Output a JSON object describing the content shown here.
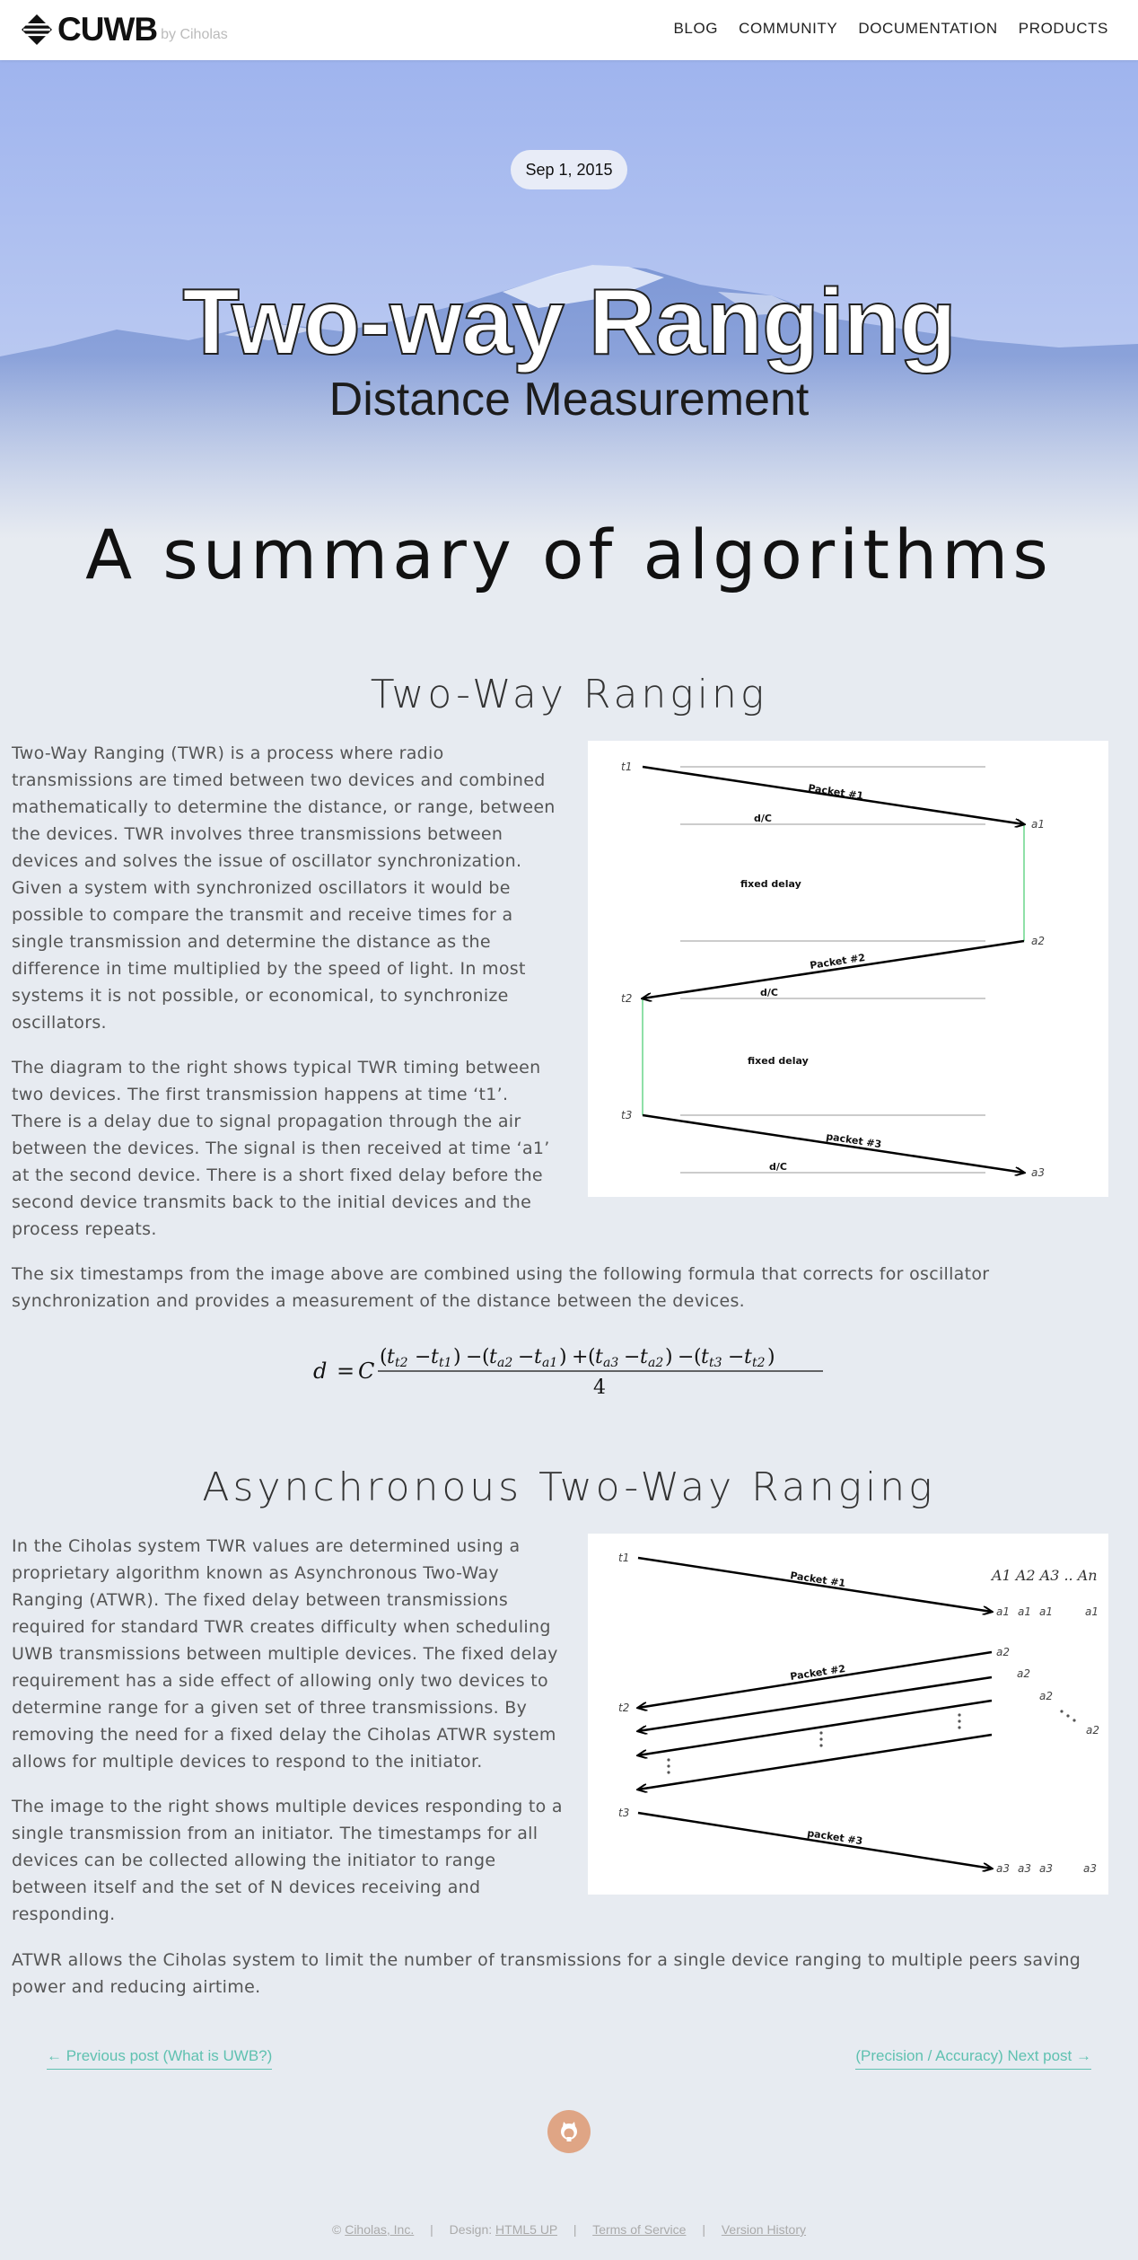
{
  "nav": {
    "logo": "CUWB",
    "by": "by Ciholas",
    "items": [
      {
        "label": "BLOG"
      },
      {
        "label": "COMMUNITY"
      },
      {
        "label": "DOCUMENTATION"
      },
      {
        "label": "PRODUCTS"
      }
    ]
  },
  "hero": {
    "date": "Sep 1, 2015",
    "title": "Two-way Ranging",
    "subtitle": "Distance Measurement"
  },
  "page_title": "A summary of algorithms",
  "section1": {
    "heading": "Two-Way Ranging",
    "para1_lines": [
      "Two-Way Ranging (TWR) is a process where radio",
      "transmissions are timed between two devices and combined",
      "mathematically to determine the distance, or range, between",
      "the devices. TWR involves three transmissions between",
      "devices and solves the issue of oscillator synchronization.",
      "Given a system with synchronized oscillators it would be",
      "possible to compare the transmit and receive times for a",
      "single transmission and determine the distance as the",
      "difference in time multiplied by the speed of light. In most",
      "systems it is not possible, or economical, to synchronize",
      "oscillators."
    ],
    "para2_lines": [
      "The diagram to the right shows typical TWR timing between",
      "two devices. The first transmission happens at time ‘t1’.",
      "There is a delay due to signal propagation through the air",
      "between the devices. The signal is then received at time ‘a1’",
      "at the second device. There is a short fixed delay before the",
      "second device transmits back to the initial devices and the",
      "process repeats."
    ],
    "para3_lines": [
      "The six timestamps from the image above are combined using the following formula that corrects for oscillator",
      "synchronization and provides a measurement of the distance between the devices."
    ],
    "diagram": {
      "t1": "t1",
      "t2": "t2",
      "t3": "t3",
      "a1": "a1",
      "a2": "a2",
      "a3": "a3",
      "packet1": "Packet #1",
      "packet2": "Packet #2",
      "packet3": "packet #3",
      "dc": "d/C",
      "fixed_delay": "fixed delay"
    },
    "formula": {
      "lhs": "d = C",
      "numerator": "(t_{t2} − t_{t1}) − (t_{a2} − t_{a1}) + (t_{a3} − t_{a2}) − (t_{t3} − t_{t2})",
      "denominator": "4"
    }
  },
  "section2": {
    "heading": "Asynchronous Two-Way Ranging",
    "para1_lines": [
      "In the Ciholas system TWR values are determined using a",
      "proprietary algorithm known as Asynchronous Two-Way",
      "Ranging (ATWR). The fixed delay between transmissions",
      "required for standard TWR creates difficulty when scheduling",
      "UWB transmissions between multiple devices. The fixed delay",
      "requirement has a side effect of allowing only two devices to",
      "determine range for a given set of three transmissions. By",
      "removing the need for a fixed delay the Ciholas ATWR system",
      "allows for multiple devices to respond to the initiator."
    ],
    "para2_lines": [
      "The image to the right shows multiple devices responding to a",
      "single transmission from an initiator. The timestamps for all",
      "devices can be collected allowing the initiator to range",
      "between itself and the set of N devices receiving and",
      "responding."
    ],
    "para3_lines": [
      "ATWR allows the Ciholas system to limit the number of transmissions for a single device ranging to multiple peers saving",
      "power and reducing airtime."
    ],
    "diagram": {
      "t1": "t1",
      "t2": "t2",
      "t3": "t3",
      "packet1": "Packet #1",
      "packet2": "Packet #2",
      "packet3": "packet #3",
      "devices": "A1 A2 A3 .. An",
      "a1": "a1",
      "a2": "a2",
      "a3": "a3"
    }
  },
  "post_nav": {
    "prev": "← Previous post (What is UWB?)",
    "next": "(Precision / Accuracy) Next post →"
  },
  "footer": {
    "copyright_prefix": "©",
    "company": "Ciholas, Inc.",
    "design_label": "Design:",
    "design_link": "HTML5 UP",
    "tos": "Terms of Service",
    "history": "Version History"
  },
  "colors": {
    "accent": "#5fc1b0",
    "github_button": "#dfa585",
    "page_bg": "#e7ebf1"
  },
  "icons": [
    "cuwb-logo-icon",
    "github-icon"
  ]
}
